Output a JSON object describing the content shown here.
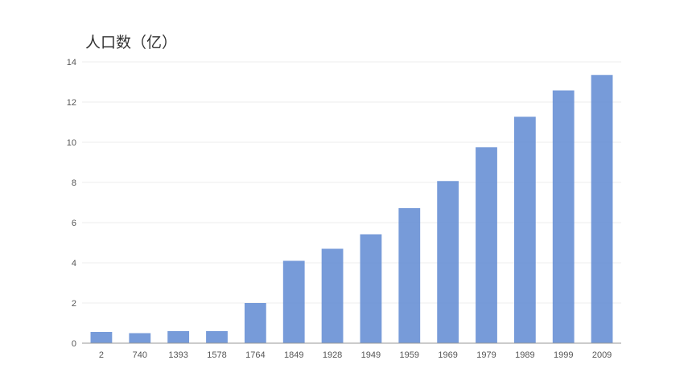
{
  "chart_data": {
    "type": "bar",
    "title": "人口数（亿）",
    "xlabel": "",
    "ylabel": "",
    "categories": [
      "2",
      "740",
      "1393",
      "1578",
      "1764",
      "1849",
      "1928",
      "1949",
      "1959",
      "1969",
      "1979",
      "1989",
      "1999",
      "2009"
    ],
    "values": [
      0.56,
      0.5,
      0.6,
      0.6,
      2.0,
      4.1,
      4.7,
      5.42,
      6.72,
      8.07,
      9.75,
      11.27,
      12.58,
      13.35
    ],
    "ylim": [
      0,
      14
    ],
    "yticks": [
      "0",
      "2",
      "4",
      "6",
      "8",
      "10",
      "12",
      "14"
    ],
    "grid": true,
    "legend": "none",
    "colors": {
      "bar": "#6b93d6",
      "grid": "#eeeeee",
      "axis": "#999999"
    }
  }
}
